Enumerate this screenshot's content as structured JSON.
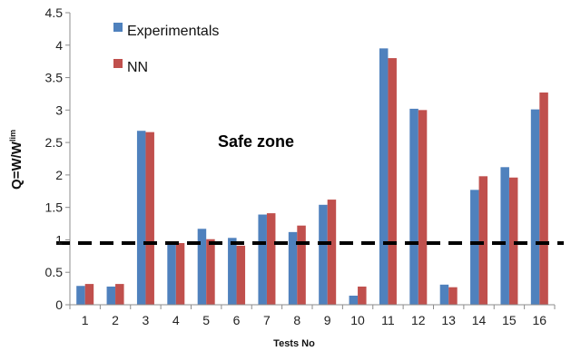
{
  "chart_data": {
    "type": "bar",
    "title": "",
    "xlabel": "Tests No",
    "ylabel": "Q=W/W",
    "ylabel_superscript": "lim",
    "ylim": [
      0,
      4.5
    ],
    "yticks": [
      0,
      0.5,
      1,
      1.5,
      2,
      2.5,
      3,
      3.5,
      4,
      4.5
    ],
    "ytick_labels": [
      "0",
      "0.5",
      "1",
      "1.5",
      "2",
      "2.5",
      "3",
      "3.5",
      "4",
      "4.5"
    ],
    "categories": [
      "1",
      "2",
      "3",
      "4",
      "5",
      "6",
      "7",
      "8",
      "9",
      "10",
      "11",
      "12",
      "13",
      "14",
      "15",
      "16"
    ],
    "series": [
      {
        "name": "Experimentals",
        "color": "#4F81BD",
        "values": [
          0.29,
          0.28,
          2.68,
          0.96,
          1.17,
          1.03,
          1.39,
          1.12,
          1.54,
          0.14,
          3.95,
          3.02,
          0.31,
          1.77,
          2.12,
          3.01
        ]
      },
      {
        "name": "NN",
        "color": "#C0504D",
        "values": [
          0.32,
          0.32,
          2.66,
          0.95,
          1.01,
          0.91,
          1.41,
          1.22,
          1.62,
          0.28,
          3.8,
          3.0,
          0.27,
          1.98,
          1.96,
          3.27
        ]
      }
    ],
    "threshold": {
      "value": 0.95,
      "style": "dashed",
      "color": "#000000"
    },
    "annotations": [
      {
        "text": "Safe zone"
      }
    ],
    "legend": {
      "placement": "top-left"
    },
    "grid": false
  }
}
